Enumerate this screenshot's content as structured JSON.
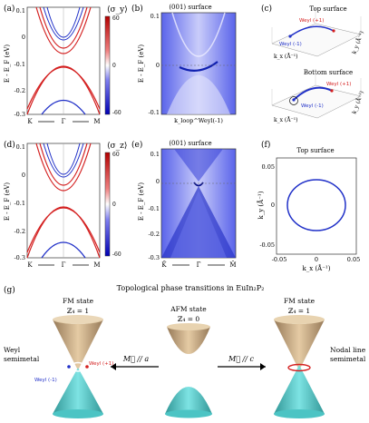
{
  "panels": {
    "a": {
      "label": "(a)",
      "ylabel": "E - E_F (eV)",
      "yticks": [
        "0.1",
        "0",
        "-0.1",
        "-0.2",
        "-0.3"
      ],
      "xticks": [
        "K",
        "Γ",
        "M"
      ],
      "cbar_title": "⟨σ_y⟩",
      "cbar_ticks": [
        "60",
        "0",
        "-60"
      ]
    },
    "b": {
      "label": "(b)",
      "title": "(001) surface",
      "ylabel": "E - E_F (eV)",
      "yticks": [
        "0.1",
        "0",
        "-0.1"
      ],
      "xlabel": "k_loop^Weyl(-1)"
    },
    "c": {
      "label": "(c)",
      "top_title": "Top surface",
      "bottom_title": "Bottom surface",
      "weyl_plus": "Weyl (+1)",
      "weyl_minus": "Weyl (-1)",
      "kx_label": "k_x (Å⁻¹)",
      "ky_label": "k_y (Å⁻¹)"
    },
    "d": {
      "label": "(d)",
      "ylabel": "E - E_F (eV)",
      "yticks": [
        "0.1",
        "0",
        "-0.1",
        "-0.2",
        "-0.3"
      ],
      "xticks": [
        "K",
        "Γ",
        "M"
      ],
      "cbar_title": "⟨σ_z⟩",
      "cbar_ticks": [
        "60",
        "0",
        "-60"
      ]
    },
    "e": {
      "label": "(e)",
      "title": "(001) surface",
      "ylabel": "E - E_F (eV)",
      "yticks": [
        "0.1",
        "0",
        "-0.1",
        "-0.2",
        "-0.3"
      ],
      "xticks": [
        "K̄",
        "Γ̄",
        "M̄"
      ]
    },
    "f": {
      "label": "(f)",
      "title": "Top surface",
      "ylabel": "k_y (Å⁻¹)",
      "xlabel": "k_x (Å⁻¹)",
      "yticks": [
        "0.05",
        "0",
        "-0.05"
      ],
      "xticks": [
        "-0.05",
        "0",
        "0.05"
      ]
    },
    "g": {
      "label": "(g)",
      "title": "Topological phase transitions in EuIn₂P₂",
      "left_state": "FM state",
      "left_z4": "ℤ₄ = 1",
      "mid_state": "AFM state",
      "mid_z4": "ℤ₄ = 0",
      "right_state": "FM state",
      "right_z4": "ℤ₄ = 1",
      "left_arrow": "M⃗ // a",
      "right_arrow": "M⃗ // c",
      "weyl_semimetal": [
        "Weyl",
        "semimetal"
      ],
      "nodal_semimetal": [
        "Nodal line",
        "semimetal"
      ],
      "weyl_plus": "Weyl (+1)",
      "weyl_minus": "Weyl (-1)"
    }
  },
  "colors": {
    "red": "#d42020",
    "blue": "#2030c8",
    "surface_blue": "#4a55e6",
    "cone_brown": "#c19a6b",
    "cone_teal": "#2fb3b3"
  },
  "chart_data": [
    {
      "panel": "a",
      "type": "line",
      "ylim": [
        -0.3,
        0.1
      ],
      "x": [
        "K",
        "Γ",
        "M"
      ],
      "series": [
        {
          "values": [
            0.1,
            -0.04,
            0.1
          ]
        },
        {
          "values": [
            -0.3,
            -0.03,
            -0.3
          ]
        }
      ]
    },
    {
      "panel": "f",
      "type": "line",
      "xlim": [
        -0.05,
        0.05
      ],
      "ylim": [
        -0.05,
        0.05
      ],
      "series": [
        {
          "values": [
            0.018
          ]
        }
      ]
    }
  ]
}
